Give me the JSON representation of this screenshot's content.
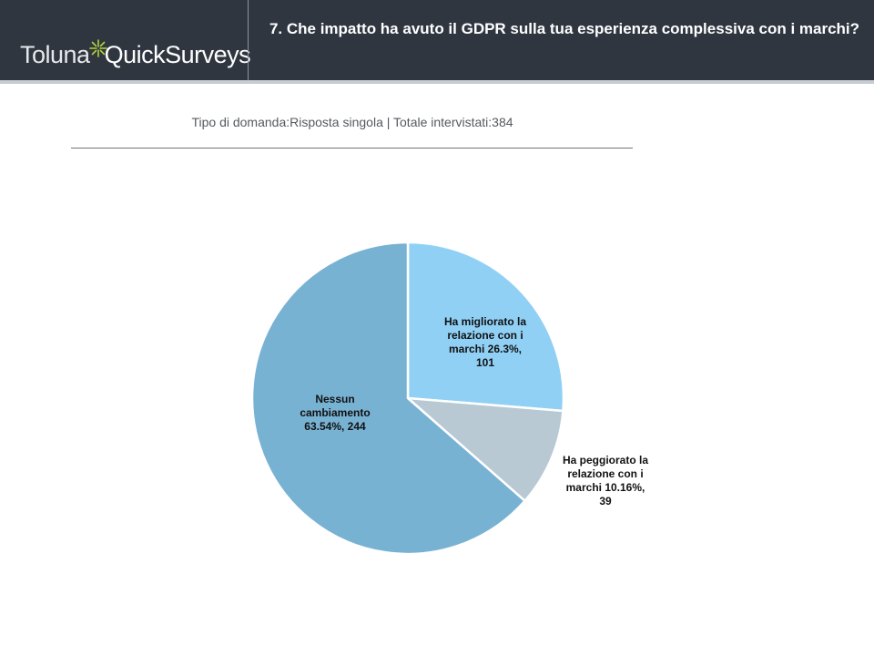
{
  "header": {
    "logo_text_part1": "Toluna",
    "logo_text_part2": "QuickSurveys",
    "logo_icon": "sparkle-icon",
    "question": "7. Che impatto ha avuto il GDPR sulla tua esperienza complessiva con i marchi?"
  },
  "subtitle": "Tipo di domanda:Risposta singola | Totale intervistati:384",
  "chart_data": {
    "type": "pie",
    "title": "",
    "slices": [
      {
        "label": "Ha migliorato la relazione con i marchi",
        "percent": 26.3,
        "count": 101,
        "color": "#90d0f5",
        "display": "Ha migliorato la\nrelazione con i\nmarchi 26.3%,\n101"
      },
      {
        "label": "Ha peggiorato la relazione con i marchi",
        "percent": 10.16,
        "count": 39,
        "color": "#b8c9d4",
        "display": "Ha peggiorato la\nrelazione con i\nmarchi 10.16%,\n39"
      },
      {
        "label": "Nessun cambiamento",
        "percent": 63.54,
        "count": 244,
        "color": "#78b2d3",
        "display": "Nessun\ncambiamento\n63.54%, 244"
      }
    ],
    "start_angle_deg": 0,
    "direction": "clockwise",
    "slice_border_color": "#ffffff"
  }
}
